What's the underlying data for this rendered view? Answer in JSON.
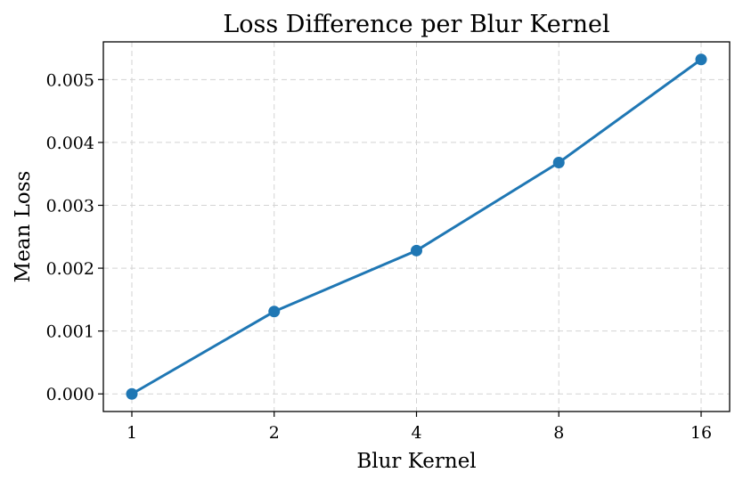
{
  "chart_data": {
    "type": "line",
    "title": "Loss Difference per Blur Kernel",
    "xlabel": "Blur Kernel",
    "ylabel": "Mean Loss",
    "categories": [
      "1",
      "2",
      "4",
      "8",
      "16"
    ],
    "series": [
      {
        "values": [
          0.0,
          0.00131,
          0.00228,
          0.00368,
          0.00532
        ],
        "color": "#1f77b4",
        "marker": "circle"
      }
    ],
    "y_ticks": [
      "0.000",
      "0.001",
      "0.002",
      "0.003",
      "0.004",
      "0.005"
    ],
    "ylim": [
      -0.00028,
      0.0056
    ],
    "grid": true,
    "grid_style": "dashed",
    "legend": "none"
  }
}
